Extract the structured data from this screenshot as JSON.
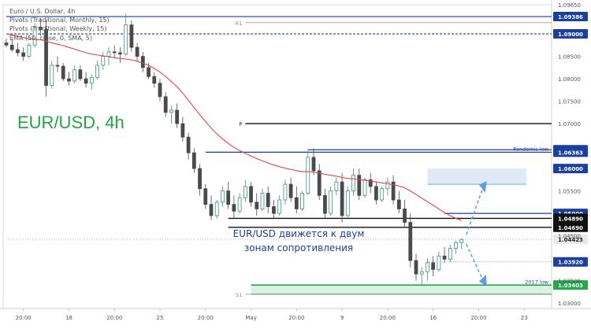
{
  "legend": {
    "line1": "Euro / U.S. Dollar, 4h",
    "line2": "Pivots (Traditional, Monthly, 15)",
    "line3": "Pivots (Traditional, Weekly, 15)",
    "line4": "EMA (50, close, 0, SMA, 5)"
  },
  "headline": "EUR/USD, 4h",
  "annotation": {
    "line1": "EUR/USD движется к двум",
    "line2": "зонам сопротивления"
  },
  "colors": {
    "up": "#3d8f83",
    "down": "#4a4a4a",
    "ema": "#e04646",
    "level_blue": "#1a3f9e",
    "level_black": "#111111",
    "pivot_gray": "#8a8a8a",
    "zone_blue": "#dde7f7",
    "zone_green": "#d7f1df",
    "green": "#23a84a",
    "arrow": "#5b9ee6"
  },
  "chart_data": {
    "type": "candlestick",
    "symbol": "EUR/USD",
    "timeframe": "4h",
    "y_range": [
      1.0288,
      1.0965
    ],
    "y_ticks": [
      {
        "v": 1.0965,
        "label": "1.09650"
      },
      {
        "v": 1.085,
        "label": "1.08500"
      },
      {
        "v": 1.08,
        "label": "1.08000"
      },
      {
        "v": 1.075,
        "label": "1.07500"
      },
      {
        "v": 1.07,
        "label": "1.07000"
      },
      {
        "v": 1.055,
        "label": "1.05500"
      },
      {
        "v": 1.045,
        "label": "1.04500"
      },
      {
        "v": 1.035,
        "label": "1.03500"
      },
      {
        "v": 1.03,
        "label": "1.03000"
      }
    ],
    "x_ticks": [
      {
        "i": 3,
        "label": "20:00"
      },
      {
        "i": 11,
        "label": "18"
      },
      {
        "i": 19,
        "label": "20:00"
      },
      {
        "i": 27,
        "label": "25"
      },
      {
        "i": 35,
        "label": "20:00"
      },
      {
        "i": 43,
        "label": "May"
      },
      {
        "i": 51,
        "label": "20:00"
      },
      {
        "i": 59,
        "label": "9"
      },
      {
        "i": 67,
        "label": "20:00"
      },
      {
        "i": 75,
        "label": "16"
      },
      {
        "i": 83,
        "label": "20:00"
      },
      {
        "i": 91,
        "label": "23"
      }
    ],
    "levels": [
      {
        "label": "1.09386",
        "value": 1.09386,
        "kind": "blue",
        "start": 0
      },
      {
        "label": "R1",
        "value": 1.0925,
        "kind": "pivot",
        "start": 42
      },
      {
        "label": "1.09000",
        "value": 1.09,
        "kind": "blue-dashed",
        "start": 0
      },
      {
        "label": "P",
        "value": 1.07,
        "kind": "black",
        "start": 42
      },
      {
        "label": "1.06418",
        "value": 1.06418,
        "kind": "blue",
        "start": 53
      },
      {
        "label": "1.06363",
        "value": 1.06363,
        "kind": "blue",
        "start": 35
      },
      {
        "label": "Pandemic low",
        "value": 1.0636,
        "kind": "tag",
        "start": 80
      },
      {
        "label": "1.06000",
        "value": 1.06,
        "kind": "zone-top",
        "start": 74
      },
      {
        "label": "1.05000",
        "value": 1.05,
        "kind": "blue",
        "start": 77
      },
      {
        "label": "1.04890",
        "value": 1.0489,
        "kind": "black",
        "start": 39
      },
      {
        "label": "1.04690",
        "value": 1.0469,
        "kind": "black",
        "start": 39
      },
      {
        "label": "1.04423",
        "value": 1.04423,
        "kind": "current",
        "start": 0
      },
      {
        "label": "1.03920",
        "value": 1.0392,
        "kind": "dotted",
        "start": 74
      },
      {
        "label": "1.03403",
        "value": 1.03403,
        "kind": "green",
        "start": 43
      },
      {
        "label": "2017 low",
        "value": 1.034,
        "kind": "tag",
        "start": 80
      },
      {
        "label": "S1",
        "value": 1.032,
        "kind": "pivot",
        "start": 42
      }
    ],
    "zones": [
      {
        "from": 1.0565,
        "to": 1.06,
        "color": "blue"
      },
      {
        "from": 1.032,
        "to": 1.034,
        "color": "green"
      }
    ],
    "ohlc": [
      [
        1.088,
        1.089,
        1.087,
        1.0875
      ],
      [
        1.0875,
        1.089,
        1.086,
        1.0865
      ],
      [
        1.0865,
        1.088,
        1.085,
        1.0858
      ],
      [
        1.0858,
        1.087,
        1.084,
        1.085
      ],
      [
        1.085,
        1.088,
        1.0845,
        1.0875
      ],
      [
        1.0875,
        1.0925,
        1.087,
        1.0915
      ],
      [
        1.0915,
        1.0935,
        1.0895,
        1.091
      ],
      [
        1.091,
        1.093,
        1.076,
        1.0785
      ],
      [
        1.0785,
        1.084,
        1.0778,
        1.083
      ],
      [
        1.083,
        1.085,
        1.0815,
        1.0828
      ],
      [
        1.0828,
        1.0835,
        1.0795,
        1.08
      ],
      [
        1.08,
        1.0815,
        1.0785,
        1.0795
      ],
      [
        1.0795,
        1.083,
        1.079,
        1.082
      ],
      [
        1.082,
        1.083,
        1.0795,
        1.08
      ],
      [
        1.08,
        1.0815,
        1.078,
        1.079
      ],
      [
        1.079,
        1.081,
        1.0775,
        1.0803
      ],
      [
        1.0803,
        1.084,
        1.0798,
        1.083
      ],
      [
        1.083,
        1.086,
        1.082,
        1.085
      ],
      [
        1.085,
        1.087,
        1.083,
        1.086
      ],
      [
        1.086,
        1.0875,
        1.0845,
        1.0858
      ],
      [
        1.0858,
        1.087,
        1.0835,
        1.0855
      ],
      [
        1.0855,
        1.0945,
        1.085,
        1.092
      ],
      [
        1.092,
        1.093,
        1.086,
        1.087
      ],
      [
        1.087,
        1.088,
        1.084,
        1.085
      ],
      [
        1.085,
        1.086,
        1.0815,
        1.0825
      ],
      [
        1.0825,
        1.0835,
        1.08,
        1.0805
      ],
      [
        1.0805,
        1.0815,
        1.078,
        1.079
      ],
      [
        1.079,
        1.08,
        1.075,
        1.076
      ],
      [
        1.076,
        1.077,
        1.0715,
        1.0725
      ],
      [
        1.0725,
        1.074,
        1.07,
        1.073
      ],
      [
        1.073,
        1.0745,
        1.069,
        1.07
      ],
      [
        1.07,
        1.0715,
        1.066,
        1.067
      ],
      [
        1.067,
        1.068,
        1.062,
        1.0635
      ],
      [
        1.0635,
        1.0645,
        1.059,
        1.06
      ],
      [
        1.06,
        1.061,
        1.054,
        1.0555
      ],
      [
        1.0555,
        1.0565,
        1.051,
        1.052
      ],
      [
        1.052,
        1.054,
        1.0485,
        1.0495
      ],
      [
        1.0495,
        1.053,
        1.0488,
        1.0525
      ],
      [
        1.0525,
        1.056,
        1.0515,
        1.055
      ],
      [
        1.055,
        1.057,
        1.051,
        1.052
      ],
      [
        1.052,
        1.054,
        1.049,
        1.0505
      ],
      [
        1.0505,
        1.0545,
        1.05,
        1.0535
      ],
      [
        1.0535,
        1.0575,
        1.0525,
        1.056
      ],
      [
        1.056,
        1.057,
        1.0515,
        1.0525
      ],
      [
        1.0525,
        1.0545,
        1.0495,
        1.051
      ],
      [
        1.051,
        1.0555,
        1.0505,
        1.0545
      ],
      [
        1.0545,
        1.056,
        1.05,
        1.0515
      ],
      [
        1.0515,
        1.053,
        1.049,
        1.05
      ],
      [
        1.05,
        1.054,
        1.0495,
        1.053
      ],
      [
        1.053,
        1.0575,
        1.052,
        1.0565
      ],
      [
        1.0565,
        1.058,
        1.0525,
        1.0535
      ],
      [
        1.0535,
        1.056,
        1.05,
        1.051
      ],
      [
        1.051,
        1.055,
        1.0505,
        1.0545
      ],
      [
        1.0545,
        1.064,
        1.054,
        1.0625
      ],
      [
        1.0625,
        1.0645,
        1.0585,
        1.0595
      ],
      [
        1.0595,
        1.061,
        1.053,
        1.054
      ],
      [
        1.054,
        1.0555,
        1.049,
        1.05
      ],
      [
        1.05,
        1.056,
        1.0495,
        1.055
      ],
      [
        1.055,
        1.058,
        1.054,
        1.057
      ],
      [
        1.057,
        1.059,
        1.048,
        1.0495
      ],
      [
        1.0495,
        1.056,
        1.049,
        1.055
      ],
      [
        1.055,
        1.06,
        1.054,
        1.0585
      ],
      [
        1.0585,
        1.06,
        1.053,
        1.054
      ],
      [
        1.054,
        1.058,
        1.0535,
        1.0575
      ],
      [
        1.0575,
        1.059,
        1.0545,
        1.056
      ],
      [
        1.056,
        1.057,
        1.052,
        1.053
      ],
      [
        1.053,
        1.056,
        1.0525,
        1.0555
      ],
      [
        1.0555,
        1.058,
        1.054,
        1.057
      ],
      [
        1.057,
        1.0585,
        1.052,
        1.053
      ],
      [
        1.053,
        1.055,
        1.05,
        1.051
      ],
      [
        1.051,
        1.053,
        1.047,
        1.048
      ],
      [
        1.048,
        1.05,
        1.038,
        1.0395
      ],
      [
        1.0395,
        1.041,
        1.035,
        1.0365
      ],
      [
        1.0365,
        1.038,
        1.034,
        1.037
      ],
      [
        1.037,
        1.04,
        1.035,
        1.039
      ],
      [
        1.039,
        1.0405,
        1.036,
        1.0375
      ],
      [
        1.0375,
        1.0415,
        1.037,
        1.0405
      ],
      [
        1.0405,
        1.0425,
        1.039,
        1.0398
      ],
      [
        1.0398,
        1.043,
        1.0392,
        1.0422
      ],
      [
        1.0422,
        1.044,
        1.041,
        1.0435
      ],
      [
        1.0435,
        1.0445,
        1.042,
        1.0442
      ]
    ],
    "ema": [
      1.09,
      1.0898,
      1.0895,
      1.0892,
      1.0889,
      1.0888,
      1.0887,
      1.0884,
      1.088,
      1.0877,
      1.0874,
      1.087,
      1.0866,
      1.0862,
      1.0858,
      1.0855,
      1.0853,
      1.0851,
      1.0849,
      1.0847,
      1.0845,
      1.0844,
      1.0842,
      1.0839,
      1.0835,
      1.083,
      1.0823,
      1.0815,
      1.0805,
      1.0794,
      1.0782,
      1.0768,
      1.0752,
      1.0736,
      1.072,
      1.0705,
      1.069,
      1.0677,
      1.0666,
      1.0656,
      1.0647,
      1.064,
      1.0634,
      1.0628,
      1.0622,
      1.0617,
      1.0612,
      1.0608,
      1.0604,
      1.0601,
      1.0598,
      1.0595,
      1.0593,
      1.0593,
      1.0592,
      1.059,
      1.0587,
      1.0585,
      1.0583,
      1.058,
      1.0578,
      1.0577,
      1.0575,
      1.0574,
      1.0572,
      1.057,
      1.0568,
      1.0566,
      1.0564,
      1.0561,
      1.0557,
      1.055,
      1.0542,
      1.0534,
      1.0526,
      1.0518,
      1.051,
      1.0502,
      1.0495,
      1.0489,
      1.0484
    ]
  }
}
